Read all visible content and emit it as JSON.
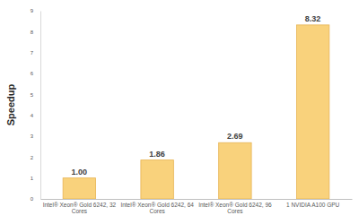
{
  "chart_data": {
    "type": "bar",
    "y_label": "Speedup",
    "categories": [
      "Intel® Xeon® Gold 6242, 32 Cores",
      "Intel® Xeon® Gold 6242, 64 Cores",
      "Intel® Xeon® Gold 6242, 96 Cores",
      "1 NVIDIA A100 GPU"
    ],
    "values": [
      1.0,
      1.86,
      2.69,
      8.32
    ],
    "value_labels": [
      "1.00",
      "1.86",
      "2.69",
      "8.32"
    ],
    "color": "#f9d27c",
    "ylim": [
      0,
      9
    ],
    "yticks": [
      0,
      1,
      2,
      3,
      4,
      5,
      6,
      7,
      8,
      9
    ],
    "grid": false,
    "data_labels": true
  }
}
